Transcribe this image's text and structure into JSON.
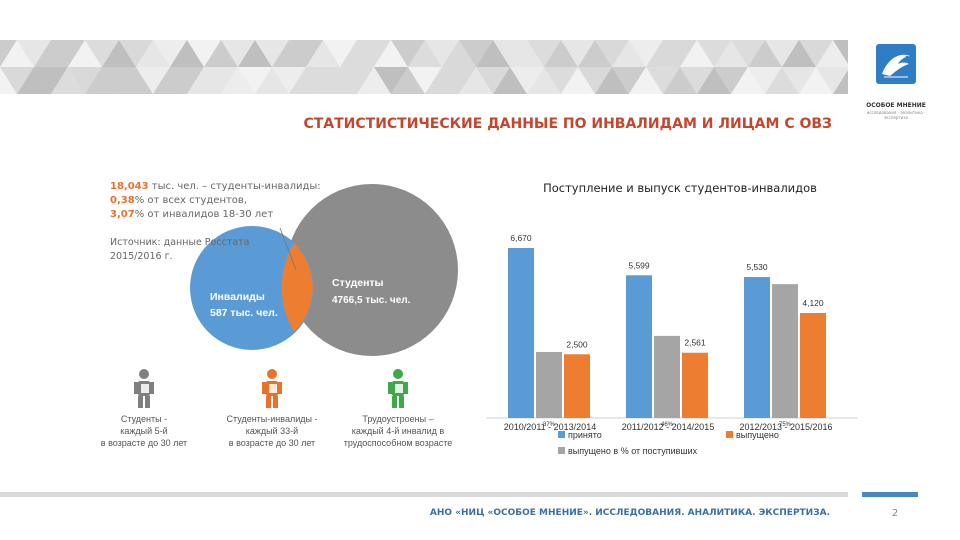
{
  "title": "СТАТИСТИСТИЧЕСКИЕ ДАННЫЕ ПО ИНВАЛИДАМ И ЛИЦАМ С ОВЗ",
  "logo": {
    "name": "ОСОБОЕ МНЕНИЕ",
    "tagline": "исследования · аналитика · экспертиза"
  },
  "infographic": {
    "stat_lines": [
      {
        "value": "18,043",
        "text": " тыс. чел. – студенты-инвалиды:"
      },
      {
        "value": "0,38",
        "text": "% от всех студентов,"
      },
      {
        "value": "3,07",
        "text": "% от инвалидов 18-30 лет"
      }
    ],
    "source_line1": "Источник: данные Росстата",
    "source_line2": "2015/2016 г.",
    "circle_small_label1": "Инвалиды",
    "circle_small_label2": "587 тыс. чел.",
    "circle_big_label1": "Студенты",
    "circle_big_label2": "4766,5 тыс. чел.",
    "figures": [
      {
        "lines": [
          "Студенты -",
          "каждый 5-й",
          "в возрасте до 30 лет"
        ],
        "color": "#7f7f7f",
        "icon": "person-icon"
      },
      {
        "lines": [
          "Студенты-инвалиды -",
          "каждый 33-й",
          "в возрасте до 30 лет"
        ],
        "color": "#e8722c",
        "icon": "person-icon"
      },
      {
        "lines": [
          "Трудоустроены –",
          "каждый 4-й инвалид в",
          "трудоспособном возрасте"
        ],
        "color": "#3ea84a",
        "icon": "person-icon"
      }
    ],
    "colors": {
      "blue": "#5b9bd5",
      "gray": "#8c8c8c",
      "orange": "#ed7d31",
      "green": "#3ea84a"
    }
  },
  "chart_data": {
    "type": "bar",
    "title": "Поступление и выпуск студентов-инвалидов",
    "categories": [
      "2010/2011 - 2013/2014",
      "2011/2012 - 2014/2015",
      "2012/2013 - 2015/2016"
    ],
    "series": [
      {
        "name": "принято",
        "values": [
          6670,
          5599,
          5530
        ],
        "labels": [
          "6,670",
          "5,599",
          "5,530"
        ],
        "color": "#5b9bd5"
      },
      {
        "name": "выпущено в % от поступивших",
        "values": [
          37,
          46,
          75
        ],
        "labels": [
          "37%",
          "46%",
          "75%"
        ],
        "color": "#a5a5a5"
      },
      {
        "name": "выпущено",
        "values": [
          2500,
          2561,
          4120
        ],
        "labels": [
          "2,500",
          "2,561",
          "4,120"
        ],
        "color": "#ed7d31"
      }
    ],
    "legend_position": "bottom"
  },
  "footer": {
    "text": "АНО «НИЦ «ОСОБОЕ МНЕНИЕ». ИССЛЕДОВАНИЯ. АНАЛИТИКА. ЭКСПЕРТИЗА.",
    "page": "2"
  }
}
